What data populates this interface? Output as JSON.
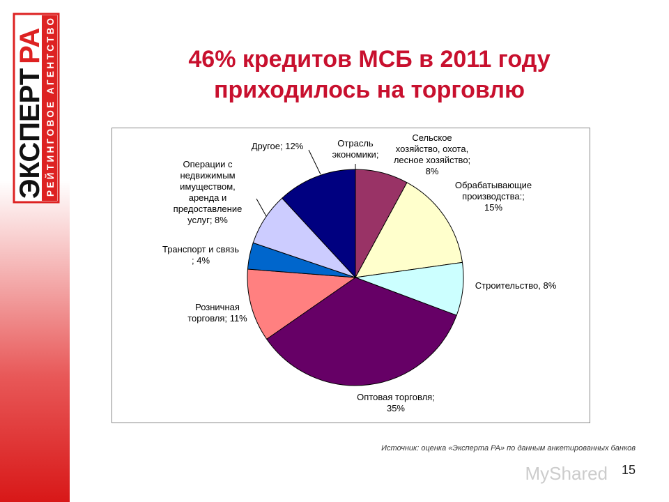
{
  "chart_data": {
    "type": "pie",
    "title": "46% кредитов МСБ в 2011 году приходилось на торговлю",
    "series_name": "Отрасль\nэкономики;",
    "categories": [
      "Сельское\nхозяйство, охота,\nлесное хозяйство;",
      "Обрабатывающие\nпроизводства:;",
      "Строительство,",
      "Оптовая торговля;",
      "Розничная\nторговля;",
      "Транспорт и связь\n;",
      "Операции с\nнедвижимым\nимуществом,\nаренда и\nпредоставление\nуслуг;",
      "Другое;"
    ],
    "values": [
      8,
      15,
      8,
      35,
      11,
      4,
      8,
      12
    ],
    "value_labels": [
      "8%",
      "15%",
      "8%",
      "35%",
      "11%",
      "4%",
      "8%",
      "12%"
    ],
    "colors": [
      "#993366",
      "#FFFFCC",
      "#CCFFFF",
      "#660066",
      "#FF8080",
      "#0066CC",
      "#CCCCFF",
      "#000080"
    ]
  },
  "logo": {
    "name": "ЭКСПЕРТ",
    "name_accent": "РА",
    "tagline": "РЕЙТИНГОВОЕ АГЕНТСТВО"
  },
  "source": "Источник: оценка «Эксперта РА» по данным анкетированных банков",
  "page_number": "15",
  "watermark": "MyShared"
}
